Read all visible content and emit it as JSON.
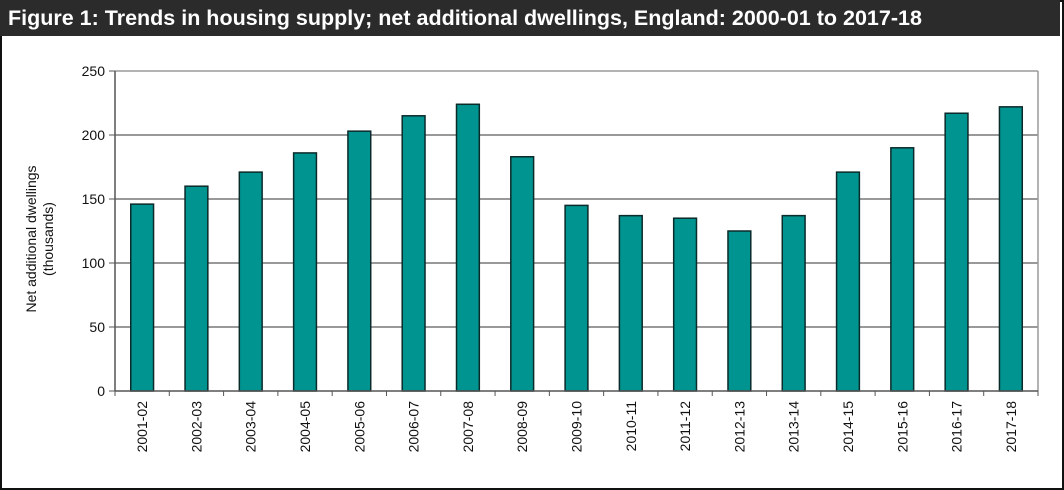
{
  "chart_data": {
    "type": "bar",
    "title": "Figure 1: Trends in housing supply; net additional dwellings, England: 2000-01 to 2017-18",
    "xlabel": "",
    "ylabel": [
      "Net additional dwellings",
      "(thousands)"
    ],
    "ylim": [
      0,
      250
    ],
    "yticks": [
      0,
      50,
      100,
      150,
      200,
      250
    ],
    "grid": true,
    "legend": "none",
    "bar_color": "#009490",
    "bar_edge_color": "#0b2a2a",
    "categories": [
      "2001-02",
      "2002-03",
      "2003-04",
      "2004-05",
      "2005-06",
      "2006-07",
      "2007-08",
      "2008-09",
      "2009-10",
      "2010-11",
      "2011-12",
      "2012-13",
      "2013-14",
      "2014-15",
      "2015-16",
      "2016-17",
      "2017-18"
    ],
    "values": [
      146,
      160,
      171,
      186,
      203,
      215,
      224,
      183,
      145,
      137,
      135,
      125,
      137,
      171,
      190,
      217,
      222
    ]
  }
}
